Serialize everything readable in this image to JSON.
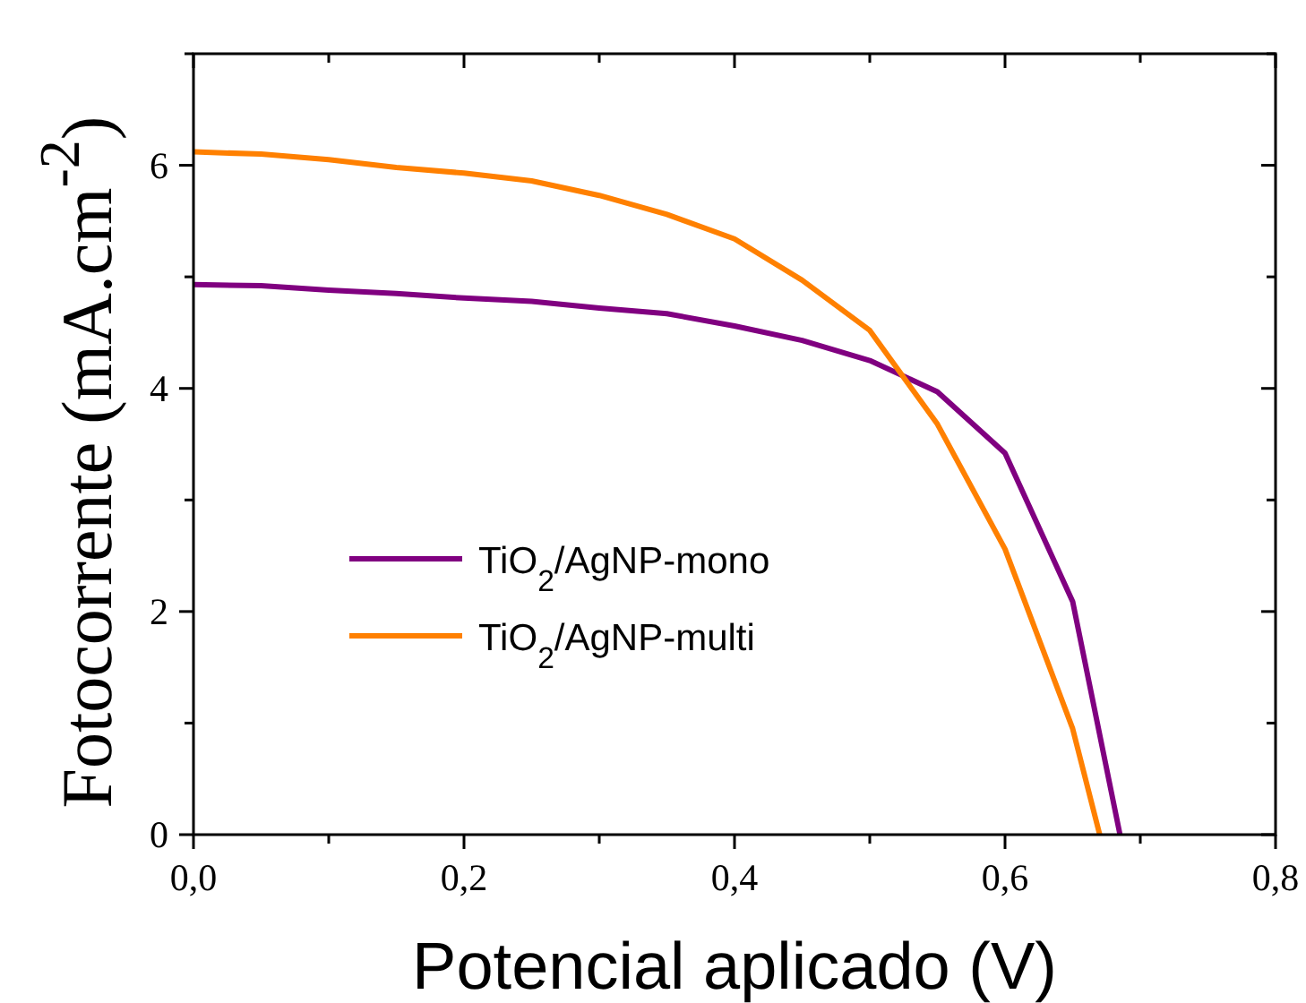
{
  "chart_data": {
    "type": "line",
    "xlabel": "Potencial aplicado (V)",
    "ylabel": "Fotocorrente (mA.cm$^{-2}$)",
    "xlim": [
      0,
      0.8
    ],
    "xticks": [
      {
        "value": 0,
        "label": "0,0"
      },
      {
        "value": 0.1,
        "label": null
      },
      {
        "value": 0.2,
        "label": "0,2"
      },
      {
        "value": 0.3,
        "label": null
      },
      {
        "value": 0.4,
        "label": "0,4"
      },
      {
        "value": 0.5,
        "label": null
      },
      {
        "value": 0.6,
        "label": "0,6"
      },
      {
        "value": 0.7,
        "label": null
      },
      {
        "value": 0.8,
        "label": "0,8"
      }
    ],
    "ylim": [
      0,
      7
    ],
    "yticks": [
      0,
      {
        "value": 1,
        "label": null
      },
      2,
      {
        "value": 3,
        "label": null
      },
      4,
      {
        "value": 5,
        "label": null
      },
      6,
      {
        "value": 7,
        "label": null
      }
    ],
    "grid": false,
    "legend": "bottom",
    "marker": "none",
    "line_style": "solid",
    "series": [
      {
        "name": "TiO$_{2}$/AgNP-mono",
        "color": "#800080",
        "x": [
          0,
          0.05,
          0.1,
          0.15,
          0.2,
          0.25,
          0.3,
          0.35,
          0.4,
          0.45,
          0.5,
          0.55,
          0.6,
          0.65,
          0.685
        ],
        "values": [
          4.93,
          4.92,
          4.88,
          4.85,
          4.81,
          4.78,
          4.72,
          4.67,
          4.56,
          4.43,
          4.25,
          3.97,
          3.42,
          2.09,
          0
        ]
      },
      {
        "name": "TiO$_{2}$/AgNP-multi",
        "color": "#ff8000",
        "x": [
          0,
          0.05,
          0.1,
          0.15,
          0.2,
          0.25,
          0.3,
          0.35,
          0.4,
          0.45,
          0.5,
          0.55,
          0.6,
          0.65,
          0.67
        ],
        "values": [
          6.12,
          6.1,
          6.05,
          5.98,
          5.93,
          5.86,
          5.73,
          5.56,
          5.34,
          4.97,
          4.52,
          3.68,
          2.56,
          0.95,
          0
        ]
      }
    ]
  }
}
